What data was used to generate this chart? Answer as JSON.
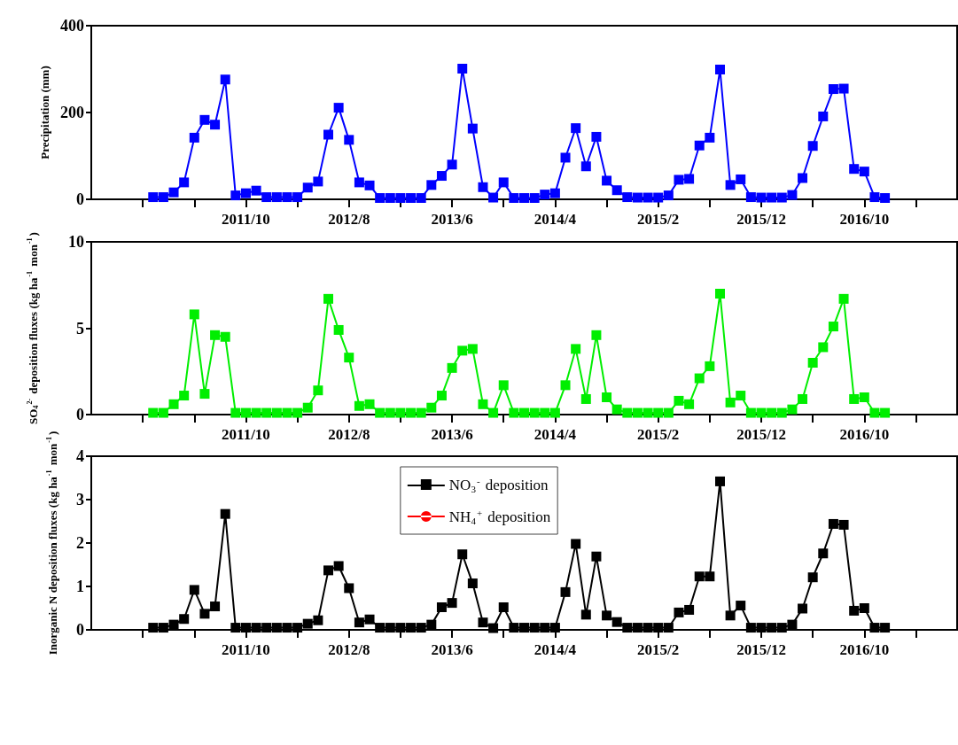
{
  "chart_data": [
    {
      "type": "line",
      "ylabel": "Precipitation (mm)",
      "marker": "square",
      "x": [
        "2011-01",
        "2011-02",
        "2011-03",
        "2011-04",
        "2011-05",
        "2011-06",
        "2011-07",
        "2011-08",
        "2011-09",
        "2011-10",
        "2011-11",
        "2011-12",
        "2012-01",
        "2012-02",
        "2012-03",
        "2012-04",
        "2012-05",
        "2012-06",
        "2012-07",
        "2012-08",
        "2012-09",
        "2012-10",
        "2012-11",
        "2012-12",
        "2013-01",
        "2013-02",
        "2013-03",
        "2013-04",
        "2013-05",
        "2013-06",
        "2013-07",
        "2013-08",
        "2013-09",
        "2013-10",
        "2013-11",
        "2013-12",
        "2014-01",
        "2014-02",
        "2014-03",
        "2014-04",
        "2014-05",
        "2014-06",
        "2014-07",
        "2014-08",
        "2014-09",
        "2014-10",
        "2014-11",
        "2014-12",
        "2015-01",
        "2015-02",
        "2015-03",
        "2015-04",
        "2015-05",
        "2015-06",
        "2015-07",
        "2015-08",
        "2015-09",
        "2015-10",
        "2015-11",
        "2015-12",
        "2016-01",
        "2016-02",
        "2016-03",
        "2016-04",
        "2016-05",
        "2016-06",
        "2016-07",
        "2016-08",
        "2016-09",
        "2016-10",
        "2016-11",
        "2016-12"
      ],
      "xlim": [
        "2010-07",
        "2017-07"
      ],
      "xticks": [
        {
          "value": "2010-12",
          "label": null
        },
        {
          "value": "2011-05",
          "label": null
        },
        {
          "value": "2011-10",
          "label": "2011/10"
        },
        {
          "value": "2012-03",
          "label": null
        },
        {
          "value": "2012-08",
          "label": "2012/8"
        },
        {
          "value": "2013-01",
          "label": null
        },
        {
          "value": "2013-06",
          "label": "2013/6"
        },
        {
          "value": "2013-11",
          "label": null
        },
        {
          "value": "2014-04",
          "label": "2014/4"
        },
        {
          "value": "2014-09",
          "label": null
        },
        {
          "value": "2015-02",
          "label": "2015/2"
        },
        {
          "value": "2015-07",
          "label": null
        },
        {
          "value": "2015-12",
          "label": "2015/12"
        },
        {
          "value": "2016-05",
          "label": null
        },
        {
          "value": "2016-10",
          "label": "2016/10"
        },
        {
          "value": "2017-03",
          "label": null
        }
      ],
      "ylim": [
        0,
        400
      ],
      "yticks": [
        0,
        200,
        400
      ],
      "series": [
        {
          "color": "#0000ff",
          "values": [
            5,
            5,
            16,
            39,
            142,
            183,
            172,
            276,
            9,
            14,
            20,
            5,
            5,
            5,
            5,
            27,
            41,
            149,
            211,
            137,
            39,
            32,
            3,
            3,
            3,
            3,
            3,
            33,
            54,
            80,
            301,
            163,
            28,
            4,
            39,
            3,
            3,
            3,
            11,
            14,
            96,
            164,
            76,
            144,
            43,
            21,
            5,
            4,
            4,
            4,
            9,
            45,
            47,
            124,
            142,
            299,
            33,
            46,
            5,
            4,
            4,
            4,
            10,
            49,
            123,
            191,
            254,
            255,
            70,
            64,
            5,
            3
          ]
        }
      ]
    },
    {
      "type": "line",
      "ylabel": "SO$_{4}$$^{2-}$ deposition fluxes (kg ha$^{-1}$ mon$^{-1}$)",
      "marker": "square",
      "x": [
        "2011-01",
        "2011-02",
        "2011-03",
        "2011-04",
        "2011-05",
        "2011-06",
        "2011-07",
        "2011-08",
        "2011-09",
        "2011-10",
        "2011-11",
        "2011-12",
        "2012-01",
        "2012-02",
        "2012-03",
        "2012-04",
        "2012-05",
        "2012-06",
        "2012-07",
        "2012-08",
        "2012-09",
        "2012-10",
        "2012-11",
        "2012-12",
        "2013-01",
        "2013-02",
        "2013-03",
        "2013-04",
        "2013-05",
        "2013-06",
        "2013-07",
        "2013-08",
        "2013-09",
        "2013-10",
        "2013-11",
        "2013-12",
        "2014-01",
        "2014-02",
        "2014-03",
        "2014-04",
        "2014-05",
        "2014-06",
        "2014-07",
        "2014-08",
        "2014-09",
        "2014-10",
        "2014-11",
        "2014-12",
        "2015-01",
        "2015-02",
        "2015-03",
        "2015-04",
        "2015-05",
        "2015-06",
        "2015-07",
        "2015-08",
        "2015-09",
        "2015-10",
        "2015-11",
        "2015-12",
        "2016-01",
        "2016-02",
        "2016-03",
        "2016-04",
        "2016-05",
        "2016-06",
        "2016-07",
        "2016-08",
        "2016-09",
        "2016-10",
        "2016-11",
        "2016-12"
      ],
      "xlim": [
        "2010-07",
        "2017-07"
      ],
      "xticks": [
        {
          "value": "2010-12",
          "label": null
        },
        {
          "value": "2011-05",
          "label": null
        },
        {
          "value": "2011-10",
          "label": "2011/10"
        },
        {
          "value": "2012-03",
          "label": null
        },
        {
          "value": "2012-08",
          "label": "2012/8"
        },
        {
          "value": "2013-01",
          "label": null
        },
        {
          "value": "2013-06",
          "label": "2013/6"
        },
        {
          "value": "2013-11",
          "label": null
        },
        {
          "value": "2014-04",
          "label": "2014/4"
        },
        {
          "value": "2014-09",
          "label": null
        },
        {
          "value": "2015-02",
          "label": "2015/2"
        },
        {
          "value": "2015-07",
          "label": null
        },
        {
          "value": "2015-12",
          "label": "2015/12"
        },
        {
          "value": "2016-05",
          "label": null
        },
        {
          "value": "2016-10",
          "label": "2016/10"
        },
        {
          "value": "2017-03",
          "label": null
        }
      ],
      "ylim": [
        0,
        10
      ],
      "yticks": [
        0,
        5,
        10
      ],
      "series": [
        {
          "color": "#00ee00",
          "values": [
            0.1,
            0.1,
            0.6,
            1.1,
            5.8,
            1.2,
            4.6,
            4.5,
            0.1,
            0.1,
            0.1,
            0.1,
            0.1,
            0.1,
            0.1,
            0.4,
            1.4,
            6.7,
            4.9,
            3.3,
            0.5,
            0.6,
            0.1,
            0.1,
            0.1,
            0.1,
            0.1,
            0.4,
            1.1,
            2.7,
            3.7,
            3.8,
            0.6,
            0.1,
            1.7,
            0.1,
            0.1,
            0.1,
            0.1,
            0.1,
            1.7,
            3.8,
            0.9,
            4.6,
            1.0,
            0.3,
            0.1,
            0.1,
            0.1,
            0.1,
            0.1,
            0.8,
            0.6,
            2.1,
            2.8,
            7.0,
            0.7,
            1.1,
            0.1,
            0.1,
            0.1,
            0.1,
            0.3,
            0.9,
            3.0,
            3.9,
            5.1,
            6.7,
            0.9,
            1.0,
            0.1,
            0.1
          ]
        }
      ]
    },
    {
      "type": "line",
      "ylabel": "Inorganic N deposition fluxes (kg ha$^{-1}$ mon$^{-1}$)",
      "marker": "square",
      "legend": "top",
      "x": [
        "2011-01",
        "2011-02",
        "2011-03",
        "2011-04",
        "2011-05",
        "2011-06",
        "2011-07",
        "2011-08",
        "2011-09",
        "2011-10",
        "2011-11",
        "2011-12",
        "2012-01",
        "2012-02",
        "2012-03",
        "2012-04",
        "2012-05",
        "2012-06",
        "2012-07",
        "2012-08",
        "2012-09",
        "2012-10",
        "2012-11",
        "2012-12",
        "2013-01",
        "2013-02",
        "2013-03",
        "2013-04",
        "2013-05",
        "2013-06",
        "2013-07",
        "2013-08",
        "2013-09",
        "2013-10",
        "2013-11",
        "2013-12",
        "2014-01",
        "2014-02",
        "2014-03",
        "2014-04",
        "2014-05",
        "2014-06",
        "2014-07",
        "2014-08",
        "2014-09",
        "2014-10",
        "2014-11",
        "2014-12",
        "2015-01",
        "2015-02",
        "2015-03",
        "2015-04",
        "2015-05",
        "2015-06",
        "2015-07",
        "2015-08",
        "2015-09",
        "2015-10",
        "2015-11",
        "2015-12",
        "2016-01",
        "2016-02",
        "2016-03",
        "2016-04",
        "2016-05",
        "2016-06",
        "2016-07",
        "2016-08",
        "2016-09",
        "2016-10",
        "2016-11",
        "2016-12"
      ],
      "xlim": [
        "2010-07",
        "2017-07"
      ],
      "xticks": [
        {
          "value": "2010-12",
          "label": null
        },
        {
          "value": "2011-05",
          "label": null
        },
        {
          "value": "2011-10",
          "label": "2011/10"
        },
        {
          "value": "2012-03",
          "label": null
        },
        {
          "value": "2012-08",
          "label": "2012/8"
        },
        {
          "value": "2013-01",
          "label": null
        },
        {
          "value": "2013-06",
          "label": "2013/6"
        },
        {
          "value": "2013-11",
          "label": null
        },
        {
          "value": "2014-04",
          "label": "2014/4"
        },
        {
          "value": "2014-09",
          "label": null
        },
        {
          "value": "2015-02",
          "label": "2015/2"
        },
        {
          "value": "2015-07",
          "label": null
        },
        {
          "value": "2015-12",
          "label": "2015/12"
        },
        {
          "value": "2016-05",
          "label": null
        },
        {
          "value": "2016-10",
          "label": "2016/10"
        },
        {
          "value": "2017-03",
          "label": null
        }
      ],
      "ylim": [
        0,
        4
      ],
      "yticks": [
        0,
        1,
        2,
        3,
        4
      ],
      "series": [
        {
          "name": "NO$_{3}$$^{-}$ deposition",
          "color": "#000000",
          "values": [
            0.05,
            0.05,
            0.12,
            0.25,
            0.92,
            0.37,
            0.54,
            2.67,
            0.05,
            0.05,
            0.05,
            0.05,
            0.05,
            0.05,
            0.05,
            0.14,
            0.22,
            1.37,
            1.47,
            0.96,
            0.17,
            0.24,
            0.05,
            0.05,
            0.05,
            0.05,
            0.05,
            0.12,
            0.52,
            0.62,
            1.74,
            1.07,
            0.17,
            0.04,
            0.52,
            0.05,
            0.05,
            0.05,
            0.05,
            0.05,
            0.87,
            1.98,
            0.35,
            1.69,
            0.33,
            0.18,
            0.05,
            0.05,
            0.05,
            0.05,
            0.05,
            0.4,
            0.46,
            1.23,
            1.23,
            3.42,
            0.33,
            0.56,
            0.05,
            0.05,
            0.05,
            0.05,
            0.12,
            0.49,
            1.21,
            1.76,
            2.44,
            2.42,
            0.44,
            0.5,
            0.05,
            0.05
          ]
        },
        {
          "name": "NH$_{4}$$^{+}$ deposition",
          "color": "#ff0000",
          "marker": "circle",
          "values": [
            null,
            null,
            null,
            null,
            null,
            null,
            null,
            null,
            null,
            null,
            null,
            null,
            null,
            null,
            null,
            null,
            null,
            null,
            null,
            null,
            null,
            null,
            null,
            null,
            null,
            null,
            null,
            null,
            null,
            null,
            null,
            null,
            null,
            null,
            null,
            null,
            null,
            null,
            null,
            null,
            null,
            null,
            null,
            null,
            null,
            null,
            null,
            null,
            null,
            null,
            null,
            null,
            null,
            null,
            null,
            null,
            null,
            null,
            null,
            null,
            null,
            null,
            null,
            null,
            null,
            null,
            null,
            null,
            null,
            null,
            null,
            null
          ]
        }
      ]
    }
  ]
}
